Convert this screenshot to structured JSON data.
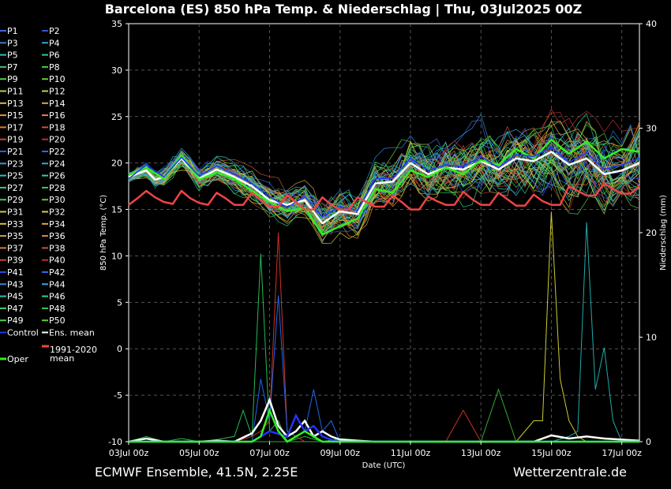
{
  "chart_data": {
    "type": "line",
    "title": "Barcelona  (ES)  850 hPa Temp. & Niederschlag | Thu, 03Jul2025 00Z",
    "xlabel": "Date (UTC)",
    "ylabel_left": "850 hPa Temp. (°C)",
    "ylabel_right": "Niederschlag (mm)",
    "ylim_left": [
      -10,
      35
    ],
    "ylim_right": [
      0,
      40
    ],
    "yticks_left": [
      -10,
      -5,
      0,
      5,
      10,
      15,
      20,
      25,
      30,
      35
    ],
    "yticks_right": [
      0,
      10,
      20,
      30,
      40
    ],
    "xticks": [
      {
        "day": 0,
        "label": "03Jul 00z"
      },
      {
        "day": 2,
        "label": "05Jul 00z"
      },
      {
        "day": 4,
        "label": "07Jul 00z"
      },
      {
        "day": 6,
        "label": "09Jul 00z"
      },
      {
        "day": 8,
        "label": "11Jul 00z"
      },
      {
        "day": 10,
        "label": "13Jul 00z"
      },
      {
        "day": 12,
        "label": "15Jul 00z"
      },
      {
        "day": 14,
        "label": "17Jul 00z"
      }
    ],
    "xlim_days": [
      0,
      14.5
    ],
    "grid": true,
    "legend_position": "left",
    "series": [
      {
        "name": "Ens. mean",
        "color": "#ffffff",
        "x": [
          0,
          0.5,
          0.75,
          1,
          1.5,
          2,
          2.5,
          3,
          3.5,
          4,
          4.5,
          5,
          5.5,
          6,
          6.5,
          7,
          7.5,
          8,
          8.5,
          9,
          9.5,
          10,
          10.5,
          11,
          11.5,
          12,
          12.5,
          13,
          13.5,
          14,
          14.5
        ],
        "y": [
          18.5,
          19.2,
          18.2,
          18.5,
          20.5,
          18.3,
          19.3,
          18.5,
          17.5,
          16,
          15.5,
          16,
          13.5,
          14.8,
          14.5,
          17.8,
          18,
          20,
          18.8,
          19.5,
          19.3,
          20.2,
          19.3,
          20.5,
          20.2,
          21.2,
          19.8,
          20.5,
          18.8,
          19.2,
          20
        ]
      },
      {
        "name": "Oper",
        "color": "#33ee22",
        "x": [
          0,
          0.5,
          1,
          1.5,
          2,
          2.5,
          3,
          3.5,
          4,
          4.5,
          5,
          5.5,
          6,
          6.5,
          7,
          7.5,
          8,
          8.5,
          9,
          9.5,
          10,
          10.5,
          11,
          11.5,
          12,
          12.5,
          13,
          13.5,
          14,
          14.5
        ],
        "y": [
          18.7,
          19.5,
          18.3,
          20.8,
          18.2,
          19,
          18.3,
          17,
          15.8,
          14.8,
          15.2,
          12.3,
          13.2,
          14,
          17.2,
          16.8,
          19.2,
          18.5,
          19.5,
          18.8,
          20.3,
          19.8,
          21.5,
          20.5,
          22.5,
          21,
          22.3,
          20.5,
          21.5,
          21.2
        ]
      },
      {
        "name": "Control",
        "color": "#2233ff",
        "x": [
          0,
          0.5,
          1,
          1.5,
          2,
          2.5,
          3,
          3.5,
          4,
          4.5,
          5,
          5.5,
          6,
          6.5,
          7,
          7.5,
          8,
          8.5,
          9,
          9.5,
          10,
          10.5,
          11,
          11.5,
          12,
          12.5,
          13,
          13.5,
          14,
          14.5
        ],
        "y": [
          18.3,
          19.8,
          18.5,
          20.6,
          18.6,
          19.7,
          18.8,
          17.8,
          16.4,
          15.2,
          16.4,
          14.2,
          15.3,
          14.9,
          18.3,
          18.4,
          20.5,
          19.2,
          19.8,
          19.6,
          20.7,
          19.5,
          20.9,
          20.7,
          21.7,
          20.1,
          21.1,
          19.3,
          19.8,
          20.5
        ]
      },
      {
        "name": "1991-2020 mean",
        "color": "#ee4444",
        "x": [
          0,
          0.25,
          0.5,
          0.75,
          1,
          1.25,
          1.5,
          1.75,
          2,
          2.25,
          2.5,
          2.75,
          3,
          3.25,
          3.5,
          3.75,
          4,
          4.25,
          4.5,
          4.75,
          5,
          5.25,
          5.5,
          5.75,
          6,
          6.25,
          6.5,
          6.75,
          7,
          7.25,
          7.5,
          7.75,
          8,
          8.25,
          8.5,
          8.75,
          9,
          9.25,
          9.5,
          9.75,
          10,
          10.25,
          10.5,
          10.75,
          11,
          11.25,
          11.5,
          11.75,
          12,
          12.25,
          12.5,
          12.75,
          13,
          13.25,
          13.5,
          13.75,
          14,
          14.25,
          14.5
        ],
        "y": [
          15.5,
          16.2,
          17,
          16.3,
          15.8,
          15.6,
          17,
          16.2,
          15.7,
          15.5,
          16.8,
          16.2,
          15.5,
          15.5,
          16.8,
          16,
          15.3,
          15.3,
          16.5,
          15.8,
          15,
          15,
          16.3,
          15.5,
          15,
          15,
          16.3,
          15.8,
          15.3,
          15.3,
          16.5,
          15.8,
          15,
          15,
          16.4,
          15.9,
          15.5,
          15.5,
          16.9,
          16.1,
          15.5,
          15.5,
          16.8,
          16.1,
          15.4,
          15.4,
          16.6,
          15.9,
          15.5,
          15.5,
          17.5,
          17,
          16.5,
          16.5,
          17.8,
          17.2,
          16.7,
          16.7,
          17.5
        ]
      }
    ],
    "precip_series": [
      {
        "name": "P8",
        "color": "#22bb55",
        "x": [
          0,
          0.5,
          1,
          1.5,
          2,
          2.5,
          3,
          3.25,
          3.5,
          3.75,
          4,
          4.25,
          4.5,
          5,
          5.5,
          6,
          7,
          8,
          9,
          10,
          11,
          11.5,
          12,
          12.5,
          13,
          13.5,
          14,
          14.5
        ],
        "y": [
          0,
          0.5,
          0,
          0.3,
          0,
          0.2,
          0.5,
          3,
          0.5,
          18,
          1,
          2,
          0,
          0.5,
          0,
          0.3,
          0,
          0,
          0,
          0,
          0,
          0,
          0,
          0,
          0,
          0,
          0,
          0
        ]
      },
      {
        "name": "P20",
        "color": "#cc3322",
        "x": [
          0,
          1,
          2,
          3,
          3.5,
          3.75,
          4,
          4.25,
          4.5,
          4.75,
          5,
          5.5,
          6,
          7,
          8,
          9,
          9.5,
          10,
          11,
          12,
          13,
          14,
          14.5
        ],
        "y": [
          0,
          0,
          0,
          0,
          0.5,
          1,
          2,
          20,
          1,
          0.5,
          0,
          0,
          0,
          0,
          0,
          0,
          3,
          0,
          0,
          0,
          0,
          0,
          0
        ]
      },
      {
        "name": "P21",
        "color": "#2266ee",
        "x": [
          0,
          1,
          2,
          3,
          3.5,
          3.75,
          4,
          4.25,
          4.5,
          4.75,
          5,
          5.25,
          5.5,
          5.75,
          6,
          7,
          8,
          9,
          10,
          11,
          12,
          13,
          14,
          14.5
        ],
        "y": [
          0,
          0,
          0,
          0,
          0,
          6,
          2,
          14,
          1,
          0.5,
          1,
          5,
          1,
          2,
          0,
          0,
          0,
          0,
          0,
          0,
          0,
          0,
          0,
          0
        ]
      },
      {
        "name": "P31",
        "color": "#cccc33",
        "x": [
          0,
          1,
          2,
          3,
          4,
          5,
          6,
          7,
          8,
          9,
          10,
          11,
          11.5,
          11.75,
          12,
          12.25,
          12.5,
          12.75,
          13,
          13.5,
          14,
          14.5
        ],
        "y": [
          0,
          0,
          0,
          0,
          0,
          0,
          0,
          0,
          0,
          0,
          0,
          0,
          2,
          2,
          22,
          6,
          2,
          0.5,
          0,
          0,
          0,
          0
        ]
      },
      {
        "name": "P45",
        "color": "#22aaaa",
        "x": [
          0,
          1,
          2,
          3,
          4,
          5,
          6,
          7,
          8,
          9,
          10,
          11,
          12,
          12.5,
          12.75,
          13,
          13.25,
          13.5,
          13.75,
          14,
          14.5
        ],
        "y": [
          0,
          0,
          0,
          0,
          0,
          0,
          0,
          0,
          0,
          0,
          0,
          0,
          0,
          0.5,
          1,
          21,
          5,
          9,
          2,
          0,
          0
        ]
      },
      {
        "name": "P47",
        "color": "#33aa33",
        "x": [
          0,
          1,
          2,
          3,
          4,
          5,
          6,
          7,
          8,
          9,
          10,
          10.5,
          11,
          11.5,
          12,
          12.5,
          13,
          13.5,
          14,
          14.5
        ],
        "y": [
          0,
          0,
          0,
          0,
          0,
          0,
          0,
          0,
          0,
          0,
          0,
          5,
          0,
          0,
          0,
          0,
          0,
          0,
          0,
          0
        ]
      },
      {
        "name": "Ens. mean",
        "color": "#ffffff",
        "x": [
          0,
          0.5,
          1,
          1.5,
          2,
          2.5,
          3,
          3.5,
          3.75,
          4,
          4.25,
          4.5,
          4.75,
          5,
          5.25,
          5.5,
          5.75,
          6,
          6.5,
          7,
          8,
          9,
          10,
          11,
          11.5,
          12,
          12.5,
          13,
          13.5,
          14,
          14.5
        ],
        "y": [
          0,
          0.3,
          0,
          0,
          0,
          0.1,
          0,
          0.8,
          2,
          4,
          1.5,
          0.5,
          1,
          2,
          0.5,
          1,
          0.5,
          0.2,
          0.1,
          0,
          0,
          0,
          0,
          0,
          0,
          0.6,
          0.3,
          0.5,
          0.3,
          0.2,
          0.1
        ]
      },
      {
        "name": "Control",
        "color": "#2233ff",
        "x": [
          0,
          1,
          2,
          3,
          3.5,
          4,
          4.5,
          4.75,
          5,
          5.25,
          5.5,
          5.75,
          6,
          7,
          8,
          9,
          10,
          11,
          12,
          13,
          14,
          14.5
        ],
        "y": [
          0,
          0,
          0,
          0,
          0,
          1,
          0.5,
          2.5,
          1,
          1.5,
          0.5,
          0.2,
          0,
          0,
          0,
          0,
          0,
          0,
          0,
          0,
          0,
          0
        ]
      },
      {
        "name": "Oper",
        "color": "#33ee22",
        "x": [
          0,
          1,
          2,
          3,
          3.5,
          3.75,
          4,
          4.25,
          4.5,
          4.75,
          5,
          5.25,
          5.5,
          6,
          7,
          8,
          9,
          10,
          11,
          12,
          13,
          14,
          14.5
        ],
        "y": [
          0,
          0,
          0,
          0,
          0,
          0.5,
          3,
          1,
          0,
          0.5,
          1,
          0.5,
          0,
          0,
          0,
          0,
          0,
          0,
          0,
          0,
          0,
          0,
          0
        ]
      }
    ],
    "legend": [
      {
        "name": "P1",
        "color": "#4466dd"
      },
      {
        "name": "P2",
        "color": "#3355cc"
      },
      {
        "name": "P3",
        "color": "#4477cc"
      },
      {
        "name": "P4",
        "color": "#33aacc"
      },
      {
        "name": "P5",
        "color": "#33bbbb"
      },
      {
        "name": "P6",
        "color": "#33cc88"
      },
      {
        "name": "P7",
        "color": "#44bb77"
      },
      {
        "name": "P8",
        "color": "#44cc44"
      },
      {
        "name": "P9",
        "color": "#55cc44"
      },
      {
        "name": "P10",
        "color": "#66cc33"
      },
      {
        "name": "P11",
        "color": "#bbcc44"
      },
      {
        "name": "P12",
        "color": "#cccc44"
      },
      {
        "name": "P13",
        "color": "#ddbb33"
      },
      {
        "name": "P14",
        "color": "#ddaa33"
      },
      {
        "name": "P15",
        "color": "#dd9944"
      },
      {
        "name": "P16",
        "color": "#dd8844"
      },
      {
        "name": "P17",
        "color": "#dd7744"
      },
      {
        "name": "P18",
        "color": "#cc5533"
      },
      {
        "name": "P19",
        "color": "#cc4433"
      },
      {
        "name": "P20",
        "color": "#bb3322"
      },
      {
        "name": "P21",
        "color": "#3355ee"
      },
      {
        "name": "P22",
        "color": "#3366dd"
      },
      {
        "name": "P23",
        "color": "#3399dd"
      },
      {
        "name": "P24",
        "color": "#33aadd"
      },
      {
        "name": "P25",
        "color": "#33bbcc"
      },
      {
        "name": "P26",
        "color": "#33ccaa"
      },
      {
        "name": "P27",
        "color": "#33cc88"
      },
      {
        "name": "P28",
        "color": "#33cc66"
      },
      {
        "name": "P29",
        "color": "#44cc44"
      },
      {
        "name": "P30",
        "color": "#55cc33"
      },
      {
        "name": "P31",
        "color": "#cccc33"
      },
      {
        "name": "P32",
        "color": "#ddcc44"
      },
      {
        "name": "P33",
        "color": "#ddbb44"
      },
      {
        "name": "P34",
        "color": "#ddaa44"
      },
      {
        "name": "P35",
        "color": "#dd9944"
      },
      {
        "name": "P36",
        "color": "#dd8844"
      },
      {
        "name": "P37",
        "color": "#dd7733"
      },
      {
        "name": "P38",
        "color": "#cc5533"
      },
      {
        "name": "P39",
        "color": "#cc4433"
      },
      {
        "name": "P40",
        "color": "#bb3333"
      },
      {
        "name": "P41",
        "color": "#3344ee"
      },
      {
        "name": "P42",
        "color": "#3366ee"
      },
      {
        "name": "P43",
        "color": "#3388dd"
      },
      {
        "name": "P44",
        "color": "#33aadd"
      },
      {
        "name": "P45",
        "color": "#33bbbb"
      },
      {
        "name": "P46",
        "color": "#33cc99"
      },
      {
        "name": "P47",
        "color": "#44cc77"
      },
      {
        "name": "P48",
        "color": "#33cc55"
      },
      {
        "name": "P49",
        "color": "#55cc44"
      },
      {
        "name": "P50",
        "color": "#66cc33"
      },
      {
        "name": "Control",
        "color": "#2233ff"
      },
      {
        "name": "Ens. mean",
        "color": "#ffffff"
      },
      {
        "name": "1991-2020 mean",
        "color": "#ee4444"
      },
      {
        "name": "Oper",
        "color": "#33ee22"
      }
    ]
  },
  "footer": {
    "left": "ECMWF Ensemble, 41.5N, 2.25E",
    "right": "Wetterzentrale.de"
  }
}
